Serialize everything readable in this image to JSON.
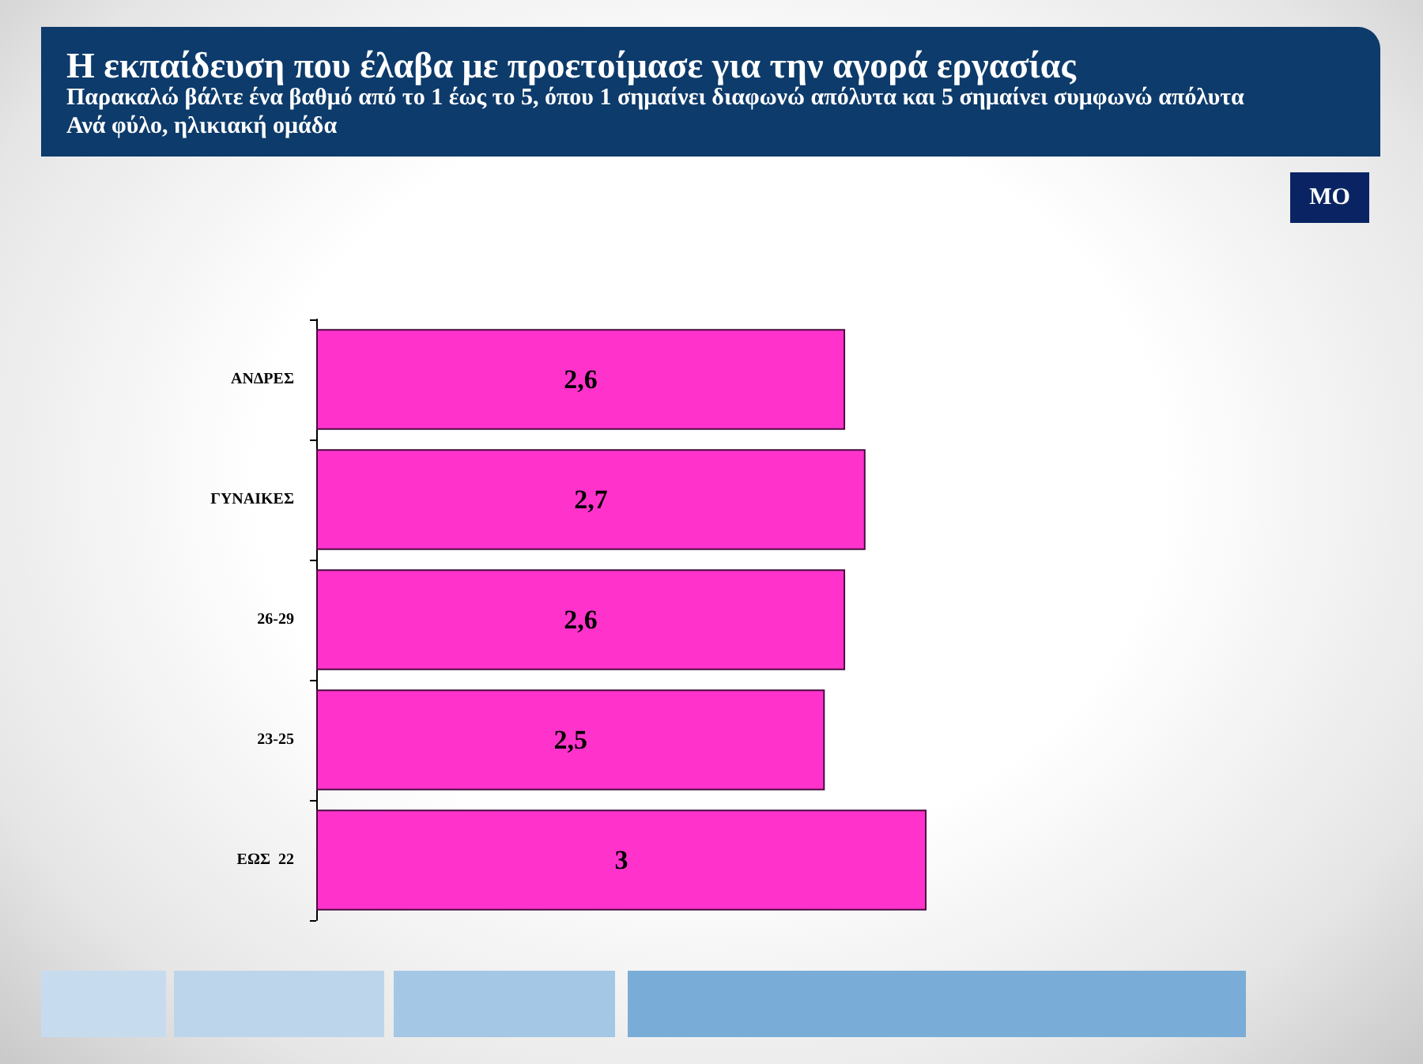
{
  "chart_data": {
    "type": "bar",
    "orientation": "horizontal",
    "title": "Η εκπαίδευση που έλαβα με προετοίμασε για την αγορά εργασίας",
    "subtitle": "Παρακαλώ βάλτε ένα βαθμό από το 1 έως το 5, όπου 1 σημαίνει διαφωνώ απόλυτα και 5 σημαίνει συμφωνώ απόλυτα\nΑνά φύλο, ηλικιακή ομάδα",
    "annotations": [
      "ΜΟ"
    ],
    "categories": [
      "ΑΝΔΡΕΣ",
      "ΓΥΝΑΙΚΕΣ",
      "26-29",
      "23-25",
      "ΕΩΣ  22"
    ],
    "values": [
      2.6,
      2.7,
      2.6,
      2.5,
      3
    ],
    "value_labels": [
      "2,6",
      "2,7",
      "2,6",
      "2,5",
      "3"
    ],
    "color": "#ff33cc"
  }
}
